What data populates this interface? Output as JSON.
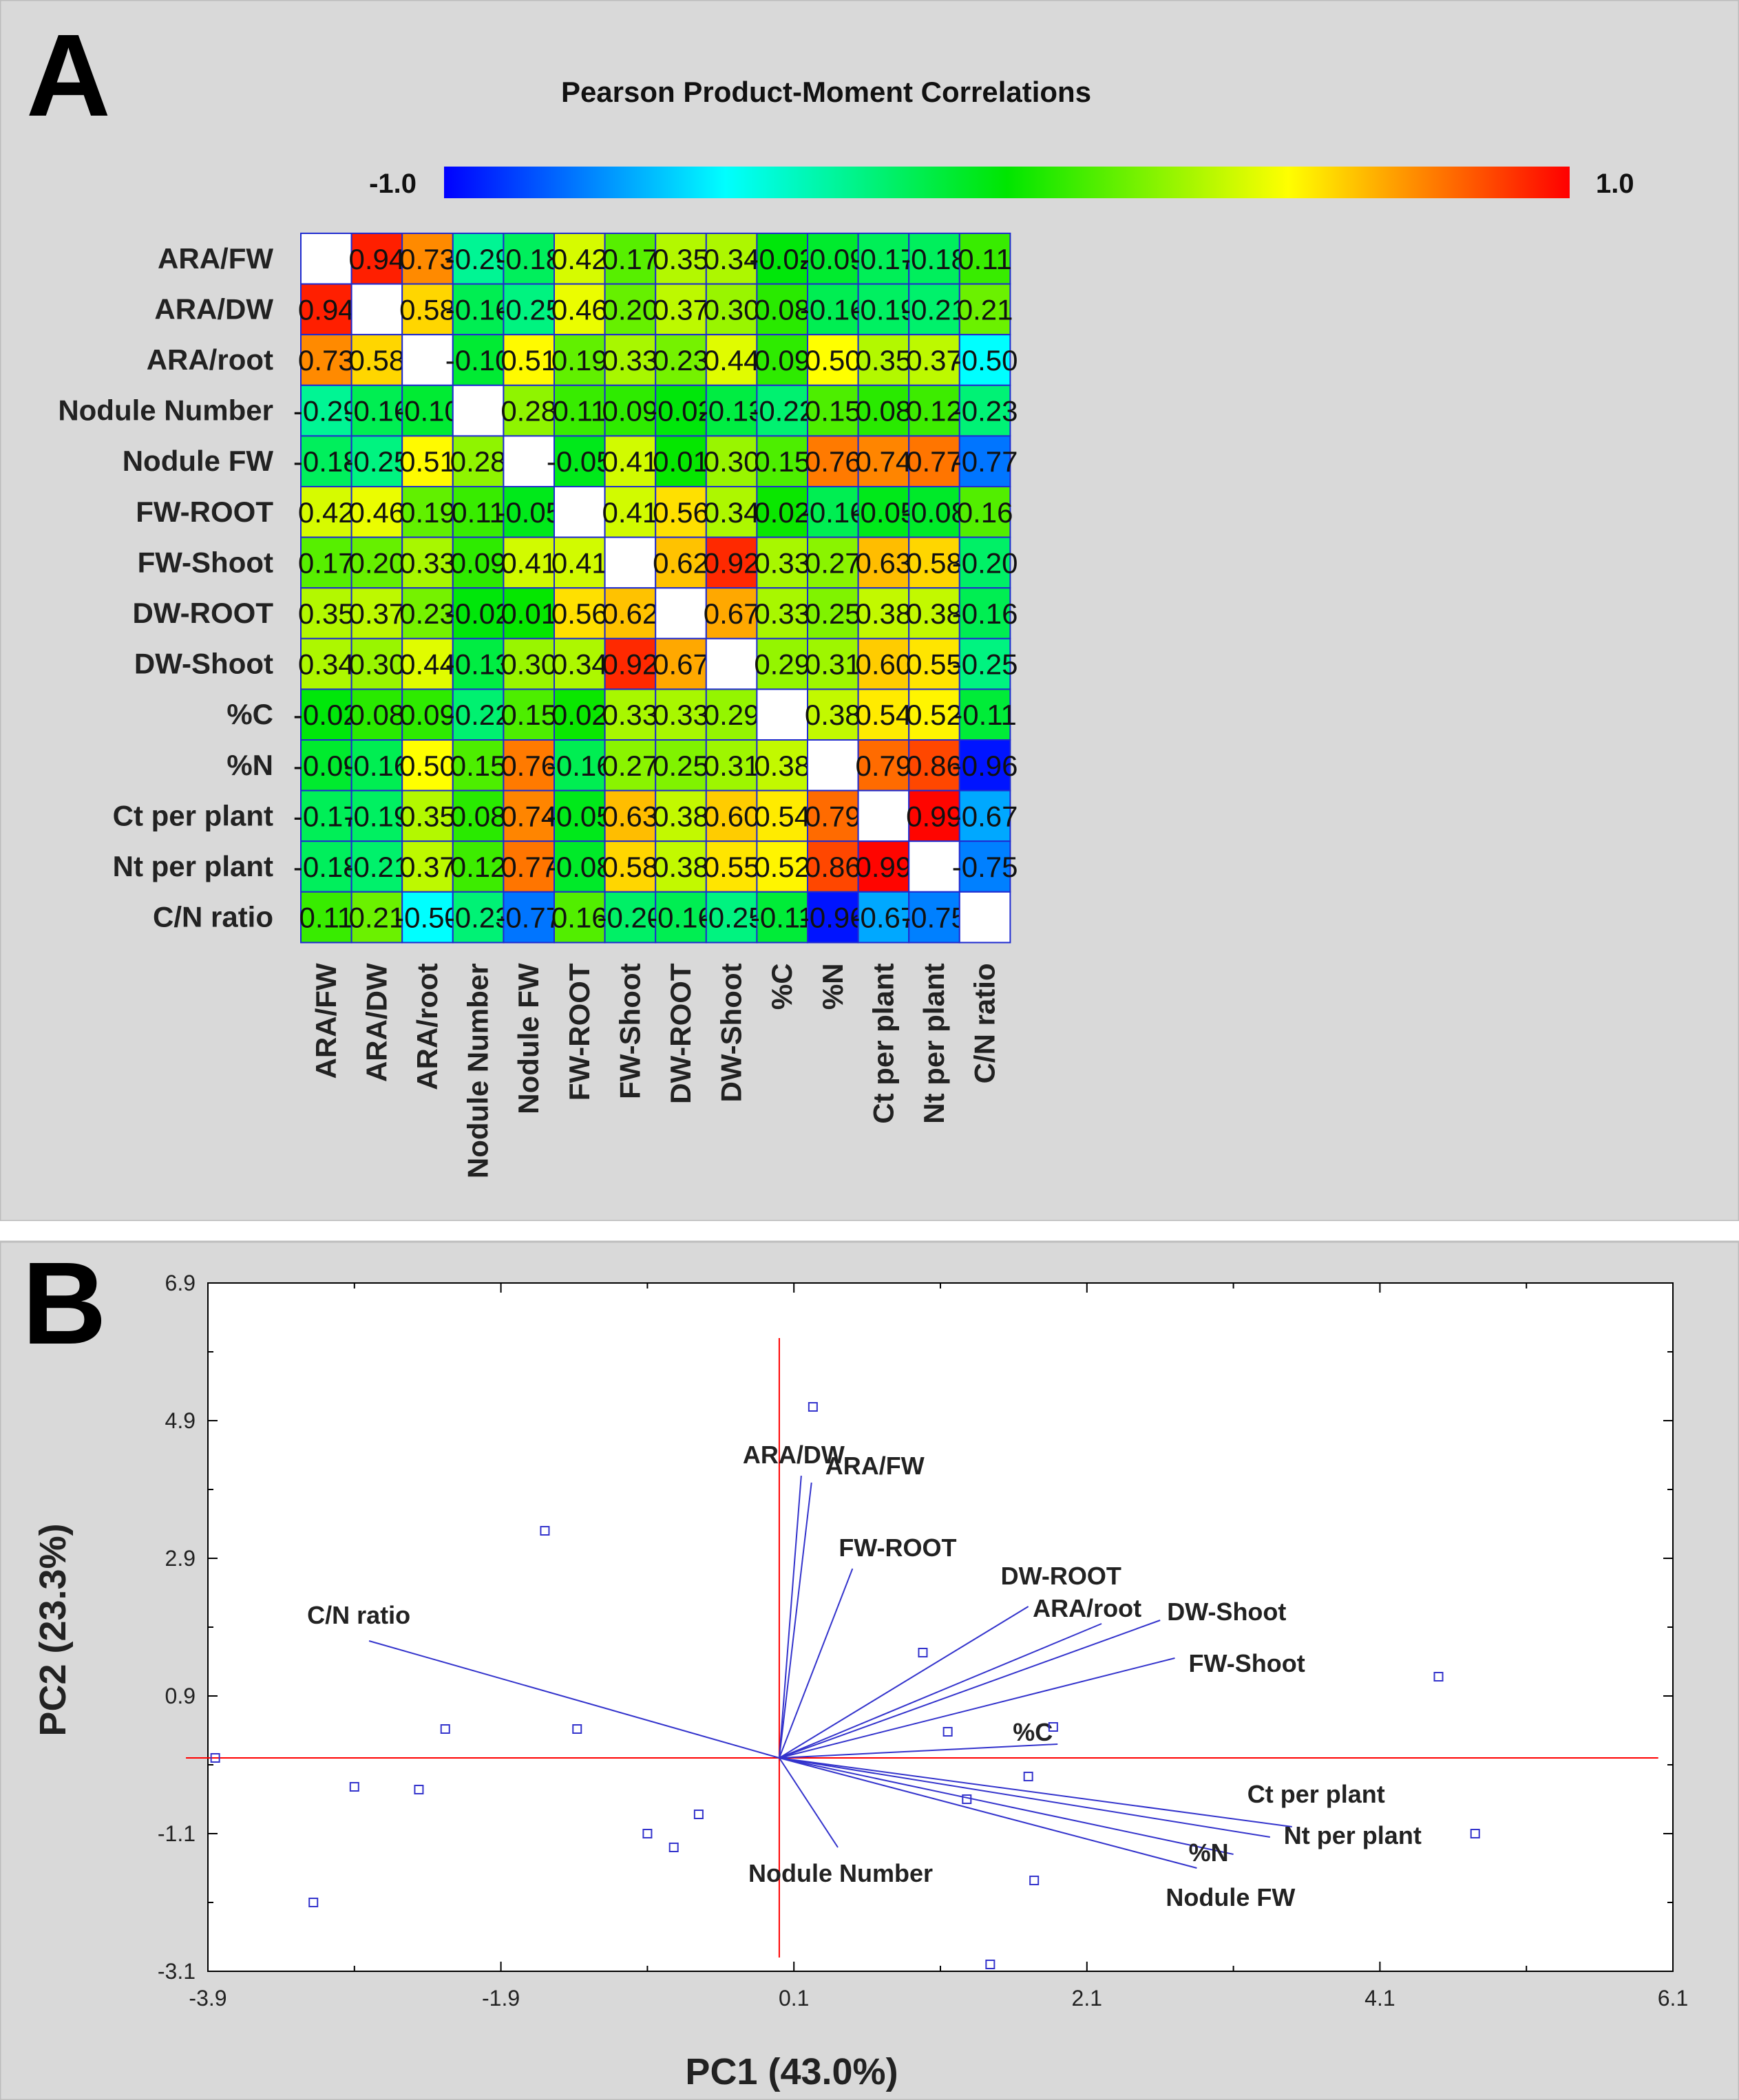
{
  "chart_data": [
    {
      "type": "heatmap",
      "panel_label": "A",
      "title": "Pearson Product-Moment Correlations",
      "colorbar": {
        "min_label": "-1.0",
        "max_label": "1.0",
        "range": [
          -1.0,
          1.0
        ],
        "stops": [
          "#0000ff",
          "#00ffff",
          "#00e600",
          "#ffff00",
          "#ff0000"
        ]
      },
      "variables": [
        "ARA/FW",
        "ARA/DW",
        "ARA/root",
        "Nodule Number",
        "Nodule FW",
        "FW-ROOT",
        "FW-Shoot",
        "DW-ROOT",
        "DW-Shoot",
        "%C",
        "%N",
        "Ct per plant",
        "Nt per plant",
        "C/N ratio"
      ],
      "matrix": [
        [
          null,
          0.94,
          0.73,
          -0.29,
          -0.18,
          0.42,
          0.17,
          0.35,
          0.34,
          -0.02,
          -0.09,
          -0.17,
          -0.18,
          0.11
        ],
        [
          0.94,
          null,
          0.58,
          -0.16,
          -0.25,
          0.46,
          0.2,
          0.37,
          0.3,
          0.08,
          -0.16,
          -0.19,
          -0.21,
          0.21
        ],
        [
          0.73,
          0.58,
          null,
          -0.1,
          0.51,
          0.19,
          0.33,
          0.23,
          0.44,
          0.09,
          0.5,
          0.35,
          0.37,
          -0.5
        ],
        [
          -0.29,
          -0.16,
          -0.1,
          null,
          0.28,
          0.11,
          0.09,
          -0.02,
          -0.13,
          -0.22,
          0.15,
          0.08,
          0.12,
          -0.23
        ],
        [
          -0.18,
          -0.25,
          0.51,
          0.28,
          null,
          -0.05,
          0.41,
          0.01,
          0.3,
          0.15,
          0.76,
          0.74,
          0.77,
          -0.77
        ],
        [
          0.42,
          0.46,
          0.19,
          0.11,
          -0.05,
          null,
          0.41,
          0.56,
          0.34,
          0.02,
          -0.16,
          -0.05,
          -0.08,
          0.16
        ],
        [
          0.17,
          0.2,
          0.33,
          0.09,
          0.41,
          0.41,
          null,
          0.62,
          0.92,
          0.33,
          0.27,
          0.63,
          0.58,
          -0.2
        ],
        [
          0.35,
          0.37,
          0.23,
          -0.02,
          0.01,
          0.56,
          0.62,
          null,
          0.67,
          0.33,
          0.25,
          0.38,
          0.38,
          -0.16
        ],
        [
          0.34,
          0.3,
          0.44,
          -0.13,
          0.3,
          0.34,
          0.92,
          0.67,
          null,
          0.29,
          0.31,
          0.6,
          0.55,
          -0.25
        ],
        [
          -0.02,
          0.08,
          0.09,
          -0.22,
          0.15,
          0.02,
          0.33,
          0.33,
          0.29,
          null,
          0.38,
          0.54,
          0.52,
          -0.11
        ],
        [
          -0.09,
          -0.16,
          0.5,
          0.15,
          0.76,
          -0.16,
          0.27,
          0.25,
          0.31,
          0.38,
          null,
          0.79,
          0.86,
          -0.96
        ],
        [
          -0.17,
          -0.19,
          0.35,
          0.08,
          0.74,
          -0.05,
          0.63,
          0.38,
          0.6,
          0.54,
          0.79,
          null,
          0.99,
          -0.67
        ],
        [
          -0.18,
          -0.21,
          0.37,
          0.12,
          0.77,
          -0.08,
          0.58,
          0.38,
          0.55,
          0.52,
          0.86,
          0.99,
          null,
          -0.75
        ],
        [
          0.11,
          0.21,
          -0.5,
          -0.23,
          -0.77,
          0.16,
          -0.2,
          -0.16,
          -0.25,
          -0.11,
          -0.96,
          -0.67,
          -0.75,
          null
        ]
      ]
    },
    {
      "type": "scatter",
      "subtype": "biplot",
      "panel_label": "B",
      "xlabel": "PC1 (43.0%)",
      "ylabel": "PC2 (23.3%)",
      "xlim": [
        -3.9,
        6.1
      ],
      "ylim": [
        -3.1,
        6.9
      ],
      "xticks": [
        -3.9,
        -1.9,
        0.1,
        2.1,
        4.1,
        6.1
      ],
      "yticks": [
        -3.1,
        -1.1,
        0.9,
        2.9,
        4.9,
        6.9
      ],
      "xtick_labels": [
        "-3.9",
        "-1.9",
        "0.1",
        "2.1",
        "4.1",
        "6.1"
      ],
      "ytick_labels": [
        "-3.1",
        "-1.1",
        "0.9",
        "2.9",
        "4.9",
        "6.9"
      ],
      "reference_lines": {
        "x": 0.0,
        "y": 0.0,
        "color": "#ff0000"
      },
      "marker_color": "#3333cc",
      "vector_color": "#3333cc",
      "points": [
        {
          "x": 0.23,
          "y": 5.1
        },
        {
          "x": -1.6,
          "y": 3.3
        },
        {
          "x": -3.85,
          "y": 0.0
        },
        {
          "x": -2.28,
          "y": 0.42
        },
        {
          "x": -1.38,
          "y": 0.42
        },
        {
          "x": -2.9,
          "y": -0.42
        },
        {
          "x": -2.46,
          "y": -0.46
        },
        {
          "x": -3.18,
          "y": -2.1
        },
        {
          "x": -0.9,
          "y": -1.1
        },
        {
          "x": -0.72,
          "y": -1.3
        },
        {
          "x": -0.55,
          "y": -0.82
        },
        {
          "x": 0.98,
          "y": 1.53
        },
        {
          "x": 1.15,
          "y": 0.38
        },
        {
          "x": 1.7,
          "y": -0.27
        },
        {
          "x": 1.87,
          "y": 0.45
        },
        {
          "x": 1.28,
          "y": -0.6
        },
        {
          "x": 1.74,
          "y": -1.78
        },
        {
          "x": 1.44,
          "y": -3.0
        },
        {
          "x": 4.5,
          "y": 1.18
        },
        {
          "x": 4.75,
          "y": -1.1
        }
      ],
      "loadings": [
        {
          "label": "ARA/DW",
          "x": 0.15,
          "y": 4.1
        },
        {
          "label": "ARA/FW",
          "x": 0.22,
          "y": 4.0
        },
        {
          "label": "FW-ROOT",
          "x": 0.5,
          "y": 2.75
        },
        {
          "label": "DW-ROOT",
          "x": 1.7,
          "y": 2.2
        },
        {
          "label": "ARA/root",
          "x": 2.2,
          "y": 1.95
        },
        {
          "label": "DW-Shoot",
          "x": 2.6,
          "y": 2.0
        },
        {
          "label": "FW-Shoot",
          "x": 2.7,
          "y": 1.45
        },
        {
          "label": "%C",
          "x": 1.9,
          "y": 0.2
        },
        {
          "label": "Ct per plant",
          "x": 3.5,
          "y": -1.0
        },
        {
          "label": "Nt per plant",
          "x": 3.35,
          "y": -1.15
        },
        {
          "label": "%N",
          "x": 3.1,
          "y": -1.4
        },
        {
          "label": "Nodule FW",
          "x": 2.85,
          "y": -1.6
        },
        {
          "label": "Nodule Number",
          "x": 0.4,
          "y": -1.3
        },
        {
          "label": "C/N ratio",
          "x": -2.8,
          "y": 1.7
        }
      ]
    }
  ]
}
